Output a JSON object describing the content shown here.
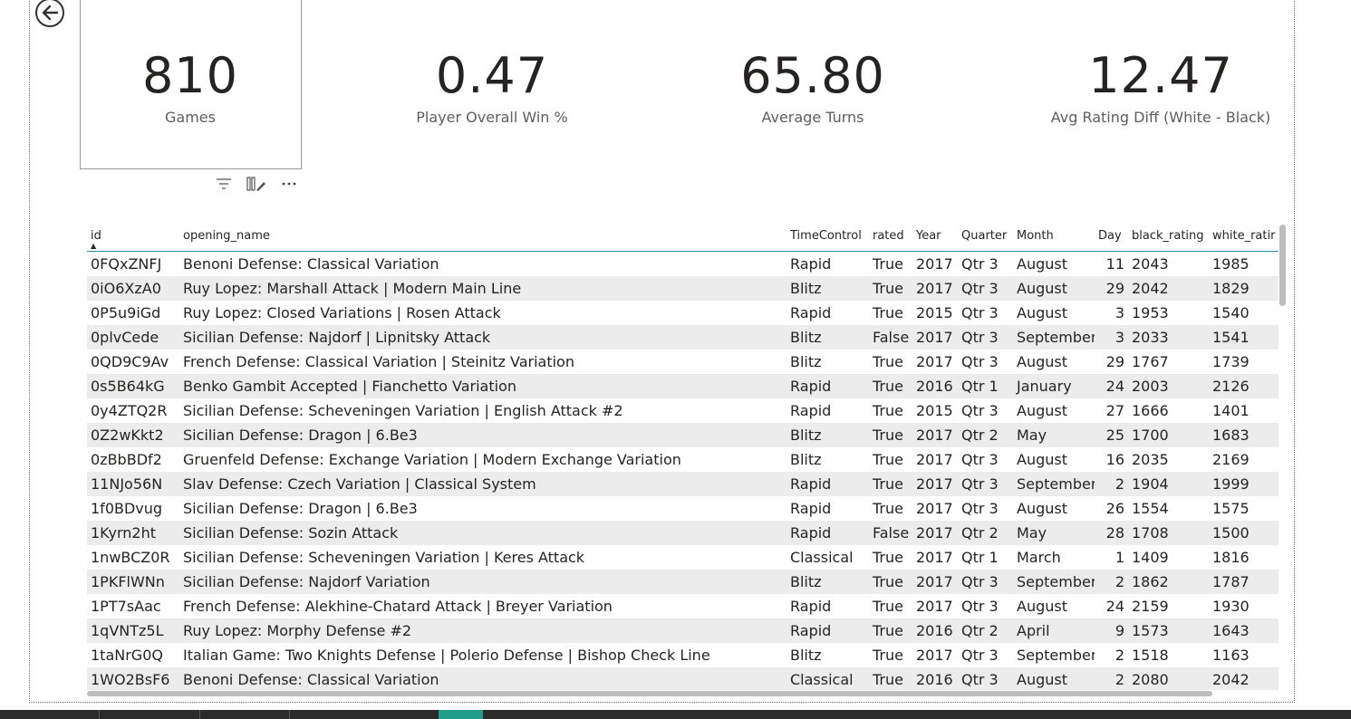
{
  "kpis": [
    {
      "value": "810",
      "label": "Games"
    },
    {
      "value": "0.47",
      "label": "Player Overall Win %"
    },
    {
      "value": "65.80",
      "label": "Average Turns"
    },
    {
      "value": "12.47",
      "label": "Avg Rating Diff (White - Black)"
    }
  ],
  "icons": {
    "back": "back-arrow-icon",
    "filter": "filter-icon",
    "focus": "focus-mode-icon",
    "more": "more-options-icon"
  },
  "table": {
    "columns": [
      "id",
      "opening_name",
      "TimeControl",
      "rated",
      "Year",
      "Quarter",
      "Month",
      "Day",
      "black_rating",
      "white_ratir"
    ],
    "sorted_column": "id",
    "rows": [
      [
        "0FQxZNFJ",
        "Benoni Defense: Classical Variation",
        "Rapid",
        "True",
        "2017",
        "Qtr 3",
        "August",
        "11",
        "2043",
        "1985"
      ],
      [
        "0iO6XzA0",
        "Ruy Lopez: Marshall Attack | Modern Main Line",
        "Blitz",
        "True",
        "2017",
        "Qtr 3",
        "August",
        "29",
        "2042",
        "1829"
      ],
      [
        "0P5u9iGd",
        "Ruy Lopez: Closed Variations | Rosen Attack",
        "Rapid",
        "True",
        "2015",
        "Qtr 3",
        "August",
        "3",
        "1953",
        "1540"
      ],
      [
        "0plvCede",
        "Sicilian Defense: Najdorf | Lipnitsky Attack",
        "Blitz",
        "False",
        "2017",
        "Qtr 3",
        "September",
        "3",
        "2033",
        "1541"
      ],
      [
        "0QD9C9Av",
        "French Defense: Classical Variation | Steinitz Variation",
        "Blitz",
        "True",
        "2017",
        "Qtr 3",
        "August",
        "29",
        "1767",
        "1739"
      ],
      [
        "0s5B64kG",
        "Benko Gambit Accepted | Fianchetto Variation",
        "Rapid",
        "True",
        "2016",
        "Qtr 1",
        "January",
        "24",
        "2003",
        "2126"
      ],
      [
        "0y4ZTQ2R",
        "Sicilian Defense: Scheveningen Variation | English Attack #2",
        "Rapid",
        "True",
        "2015",
        "Qtr 3",
        "August",
        "27",
        "1666",
        "1401"
      ],
      [
        "0Z2wKkt2",
        "Sicilian Defense: Dragon | 6.Be3",
        "Blitz",
        "True",
        "2017",
        "Qtr 2",
        "May",
        "25",
        "1700",
        "1683"
      ],
      [
        "0zBbBDf2",
        "Gruenfeld Defense: Exchange Variation | Modern Exchange Variation",
        "Blitz",
        "True",
        "2017",
        "Qtr 3",
        "August",
        "16",
        "2035",
        "2169"
      ],
      [
        "11NJo56N",
        "Slav Defense: Czech Variation | Classical System",
        "Rapid",
        "True",
        "2017",
        "Qtr 3",
        "September",
        "2",
        "1904",
        "1999"
      ],
      [
        "1f0BDvug",
        "Sicilian Defense: Dragon | 6.Be3",
        "Rapid",
        "True",
        "2017",
        "Qtr 3",
        "August",
        "26",
        "1554",
        "1575"
      ],
      [
        "1Kyrn2ht",
        "Sicilian Defense: Sozin Attack",
        "Rapid",
        "False",
        "2017",
        "Qtr 2",
        "May",
        "28",
        "1708",
        "1500"
      ],
      [
        "1nwBCZ0R",
        "Sicilian Defense: Scheveningen Variation | Keres Attack",
        "Classical",
        "True",
        "2017",
        "Qtr 1",
        "March",
        "1",
        "1409",
        "1816"
      ],
      [
        "1PKFlWNn",
        "Sicilian Defense: Najdorf Variation",
        "Blitz",
        "True",
        "2017",
        "Qtr 3",
        "September",
        "2",
        "1862",
        "1787"
      ],
      [
        "1PT7sAac",
        "French Defense: Alekhine-Chatard Attack | Breyer Variation",
        "Rapid",
        "True",
        "2017",
        "Qtr 3",
        "August",
        "24",
        "2159",
        "1930"
      ],
      [
        "1qVNTz5L",
        "Ruy Lopez: Morphy Defense #2",
        "Rapid",
        "True",
        "2016",
        "Qtr 2",
        "April",
        "9",
        "1573",
        "1643"
      ],
      [
        "1taNrG0Q",
        "Italian Game: Two Knights Defense | Polerio Defense | Bishop Check Line",
        "Blitz",
        "True",
        "2017",
        "Qtr 3",
        "September",
        "2",
        "1518",
        "1163"
      ],
      [
        "1WO2BsF6",
        "Benoni Defense: Classical Variation",
        "Classical",
        "True",
        "2016",
        "Qtr 3",
        "August",
        "2",
        "2080",
        "2042"
      ]
    ]
  }
}
